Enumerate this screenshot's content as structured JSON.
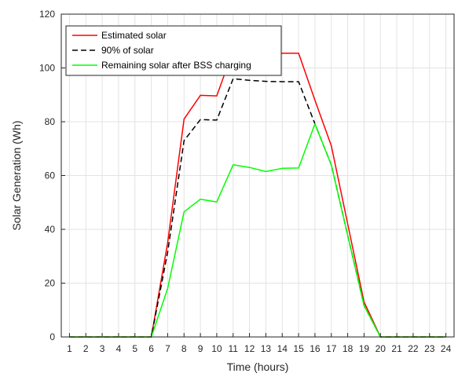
{
  "chart_data": {
    "type": "line",
    "title": "",
    "xlabel": "Time (hours)",
    "ylabel": "Solar Generation (Wh)",
    "x": [
      1,
      2,
      3,
      4,
      5,
      6,
      7,
      8,
      9,
      10,
      11,
      12,
      13,
      14,
      15,
      16,
      17,
      18,
      19,
      20,
      21,
      22,
      23,
      24
    ],
    "xlim": [
      0.5,
      24.5
    ],
    "ylim": [
      0,
      120
    ],
    "yticks": [
      0,
      20,
      40,
      60,
      80,
      100,
      120
    ],
    "grid": true,
    "legend_position": "top-left",
    "series": [
      {
        "name": "Estimated solar",
        "color": "#ff0000",
        "dash": "solid",
        "values": [
          0,
          0,
          0,
          0,
          0,
          0,
          35,
          81,
          89.8,
          89.6,
          106.5,
          106,
          105.5,
          105.5,
          105.5,
          88,
          71,
          42,
          13,
          0,
          0,
          0,
          0,
          0
        ]
      },
      {
        "name": "90% of solar",
        "color": "#000000",
        "dash": "dashed",
        "values": [
          0,
          0,
          0,
          0,
          0,
          0,
          31.5,
          73,
          80.8,
          80.6,
          96,
          95.4,
          95,
          94.9,
          94.9,
          79.2,
          63.9,
          37.8,
          11.7,
          0,
          0,
          0,
          0,
          0
        ]
      },
      {
        "name": "Remaining solar after BSS charging",
        "color": "#00ff00",
        "dash": "solid",
        "values": [
          0,
          0,
          0,
          0,
          0,
          0,
          18,
          46.5,
          51.2,
          50.2,
          64,
          63,
          61.5,
          62.7,
          62.8,
          79.2,
          63.9,
          37.8,
          11.7,
          0,
          0,
          0,
          0,
          0
        ]
      }
    ]
  }
}
